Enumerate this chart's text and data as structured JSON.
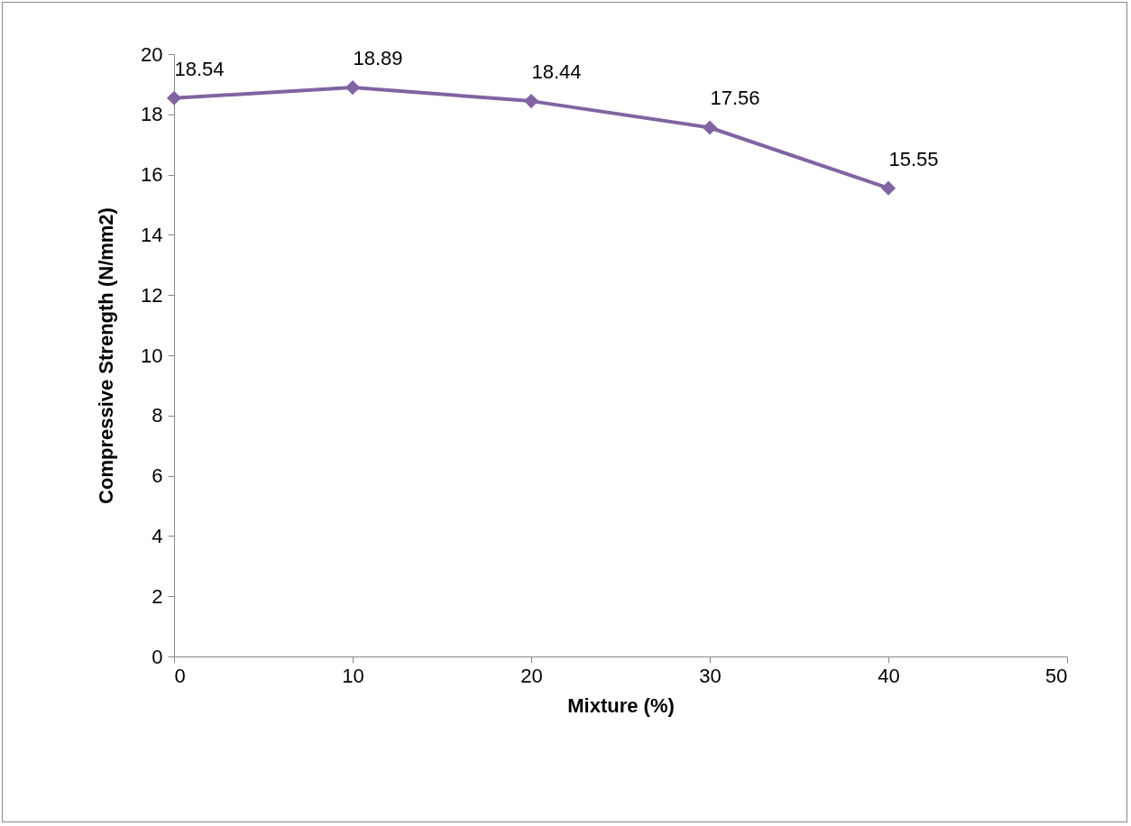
{
  "chart_data": {
    "type": "line",
    "xlabel": "Mixture (%)",
    "ylabel": "Compressive Strength (N/mm2)",
    "x": [
      0,
      10,
      20,
      30,
      40
    ],
    "series": [
      {
        "color": "#8064a2",
        "values": [
          18.54,
          18.89,
          18.44,
          17.56,
          15.55
        ]
      }
    ],
    "xlim": [
      0,
      50
    ],
    "xticks": [
      0,
      10,
      20,
      30,
      40,
      50
    ],
    "ylim": [
      0,
      20
    ],
    "yticks": [
      0,
      2,
      4,
      6,
      8,
      10,
      12,
      14,
      16,
      18,
      20
    ],
    "data_labels": true,
    "marker": "diamond",
    "line_style": "solid",
    "grid": false
  }
}
